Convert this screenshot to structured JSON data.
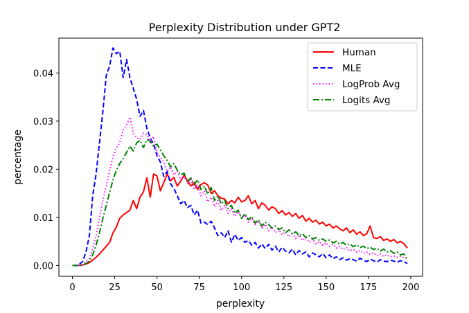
{
  "chart_data": {
    "type": "line",
    "title": "Perplexity Distribution under GPT2",
    "xlabel": "perplexity",
    "ylabel": "percentage",
    "xlim": [
      -8,
      207
    ],
    "ylim": [
      -0.00225,
      0.04725
    ],
    "x_ticks": [
      0,
      25,
      50,
      75,
      100,
      125,
      150,
      175,
      200
    ],
    "y_ticks": [
      0.0,
      0.01,
      0.02,
      0.03,
      0.04
    ],
    "x_tick_labels": [
      "0",
      "25",
      "50",
      "75",
      "100",
      "125",
      "150",
      "175",
      "200"
    ],
    "y_tick_labels": [
      "0.00",
      "0.01",
      "0.02",
      "0.03",
      "0.04"
    ],
    "grid": false,
    "legend_position": "top-right",
    "series": [
      {
        "name": "Human",
        "color": "#ff0000",
        "dash": "solid",
        "x": [
          0,
          2,
          4,
          6,
          8,
          10,
          12,
          14,
          16,
          18,
          20,
          22,
          24,
          26,
          28,
          30,
          32,
          34,
          36,
          38,
          40,
          42,
          44,
          46,
          48,
          50,
          52,
          54,
          56,
          58,
          60,
          62,
          64,
          66,
          68,
          70,
          72,
          74,
          76,
          78,
          80,
          82,
          84,
          86,
          88,
          90,
          92,
          94,
          96,
          98,
          100,
          102,
          104,
          106,
          108,
          110,
          112,
          114,
          116,
          118,
          120,
          122,
          124,
          126,
          128,
          130,
          132,
          134,
          136,
          138,
          140,
          142,
          144,
          146,
          148,
          150,
          152,
          154,
          156,
          158,
          160,
          162,
          164,
          166,
          168,
          170,
          172,
          174,
          176,
          178,
          180,
          182,
          184,
          186,
          188,
          190,
          192,
          194,
          196,
          198
        ],
        "y": [
          0.0,
          0.0,
          0.0,
          0.0001,
          0.0003,
          0.0006,
          0.0011,
          0.0017,
          0.0024,
          0.0032,
          0.004,
          0.0048,
          0.0068,
          0.008,
          0.0098,
          0.0105,
          0.011,
          0.0115,
          0.0135,
          0.0118,
          0.0142,
          0.0153,
          0.0182,
          0.0142,
          0.019,
          0.0186,
          0.0155,
          0.0172,
          0.019,
          0.0176,
          0.0183,
          0.0165,
          0.0175,
          0.0188,
          0.0176,
          0.0165,
          0.0172,
          0.0158,
          0.0168,
          0.0172,
          0.0167,
          0.015,
          0.0155,
          0.0145,
          0.014,
          0.0138,
          0.0128,
          0.0135,
          0.013,
          0.0142,
          0.0132,
          0.0135,
          0.0145,
          0.0128,
          0.0135,
          0.0118,
          0.013,
          0.0125,
          0.0115,
          0.0122,
          0.0118,
          0.0108,
          0.0114,
          0.0105,
          0.011,
          0.0102,
          0.0108,
          0.0098,
          0.0104,
          0.0092,
          0.0098,
          0.009,
          0.0094,
          0.0086,
          0.009,
          0.0082,
          0.0086,
          0.0078,
          0.0082,
          0.0076,
          0.0072,
          0.0078,
          0.0068,
          0.0074,
          0.0065,
          0.007,
          0.0062,
          0.0066,
          0.0082,
          0.0058,
          0.0056,
          0.006,
          0.0052,
          0.0055,
          0.005,
          0.0054,
          0.0047,
          0.005,
          0.0045,
          0.0036
        ]
      },
      {
        "name": "MLE",
        "color": "#0000ff",
        "dash": "dashed",
        "x": [
          0,
          2,
          4,
          6,
          8,
          10,
          12,
          14,
          16,
          18,
          20,
          22,
          24,
          26,
          28,
          30,
          32,
          34,
          36,
          38,
          40,
          42,
          44,
          46,
          48,
          50,
          52,
          54,
          56,
          58,
          60,
          62,
          64,
          66,
          68,
          70,
          72,
          74,
          76,
          78,
          80,
          82,
          84,
          86,
          88,
          90,
          92,
          94,
          96,
          98,
          100,
          102,
          104,
          106,
          108,
          110,
          112,
          114,
          116,
          118,
          120,
          122,
          124,
          126,
          128,
          130,
          132,
          134,
          136,
          138,
          140,
          142,
          144,
          146,
          148,
          150,
          152,
          154,
          156,
          158,
          160,
          162,
          164,
          166,
          168,
          170,
          172,
          174,
          176,
          178,
          180,
          182,
          184,
          186,
          188,
          190,
          192,
          194,
          196,
          198
        ],
        "y": [
          0.0,
          0.0,
          0.0002,
          0.0008,
          0.0028,
          0.0062,
          0.0145,
          0.019,
          0.0255,
          0.032,
          0.0395,
          0.0415,
          0.0452,
          0.044,
          0.0445,
          0.039,
          0.0428,
          0.039,
          0.0368,
          0.0345,
          0.031,
          0.0322,
          0.0285,
          0.0265,
          0.0252,
          0.0228,
          0.0215,
          0.0185,
          0.0195,
          0.017,
          0.016,
          0.0145,
          0.0128,
          0.0135,
          0.012,
          0.0125,
          0.0105,
          0.0115,
          0.0088,
          0.009,
          0.0085,
          0.0092,
          0.0078,
          0.0062,
          0.0068,
          0.0058,
          0.0072,
          0.0048,
          0.0065,
          0.0052,
          0.0058,
          0.0048,
          0.0052,
          0.0042,
          0.0048,
          0.0036,
          0.0045,
          0.0035,
          0.0044,
          0.0032,
          0.004,
          0.0028,
          0.0038,
          0.003,
          0.0026,
          0.0034,
          0.0022,
          0.0031,
          0.0024,
          0.0028,
          0.0018,
          0.0026,
          0.0022,
          0.0018,
          0.0025,
          0.0016,
          0.0022,
          0.0014,
          0.0018,
          0.0012,
          0.0016,
          0.0011,
          0.0014,
          0.0012,
          0.0009,
          0.0015,
          0.0011,
          0.0008,
          0.0013,
          0.001,
          0.0007,
          0.0012,
          0.0009,
          0.0008,
          0.0011,
          0.0009,
          0.0007,
          0.001,
          0.0008,
          0.0004
        ]
      },
      {
        "name": "LogProb Avg",
        "color": "#ff00ff",
        "dash": "dotted",
        "x": [
          0,
          2,
          4,
          6,
          8,
          10,
          12,
          14,
          16,
          18,
          20,
          22,
          24,
          26,
          28,
          30,
          32,
          34,
          36,
          38,
          40,
          42,
          44,
          46,
          48,
          50,
          52,
          54,
          56,
          58,
          60,
          62,
          64,
          66,
          68,
          70,
          72,
          74,
          76,
          78,
          80,
          82,
          84,
          86,
          88,
          90,
          92,
          94,
          96,
          98,
          100,
          102,
          104,
          106,
          108,
          110,
          112,
          114,
          116,
          118,
          120,
          122,
          124,
          126,
          128,
          130,
          132,
          134,
          136,
          138,
          140,
          142,
          144,
          146,
          148,
          150,
          152,
          154,
          156,
          158,
          160,
          162,
          164,
          166,
          168,
          170,
          172,
          174,
          176,
          178,
          180,
          182,
          184,
          186,
          188,
          190,
          192,
          194,
          196,
          198
        ],
        "y": [
          0.0,
          0.0,
          0.0,
          0.0002,
          0.0008,
          0.0015,
          0.0035,
          0.0062,
          0.0098,
          0.0135,
          0.0165,
          0.0198,
          0.0225,
          0.0245,
          0.0255,
          0.0282,
          0.0292,
          0.0308,
          0.0275,
          0.0265,
          0.0262,
          0.0275,
          0.0272,
          0.0255,
          0.0268,
          0.0235,
          0.0225,
          0.0215,
          0.0195,
          0.0205,
          0.0188,
          0.0195,
          0.0178,
          0.0185,
          0.017,
          0.018,
          0.0158,
          0.0168,
          0.0145,
          0.0155,
          0.0132,
          0.0142,
          0.0122,
          0.0135,
          0.0115,
          0.0125,
          0.0108,
          0.0118,
          0.0102,
          0.0112,
          0.0098,
          0.0105,
          0.009,
          0.0098,
          0.0085,
          0.0092,
          0.0078,
          0.0086,
          0.0072,
          0.008,
          0.0068,
          0.0075,
          0.0064,
          0.007,
          0.006,
          0.0066,
          0.0056,
          0.0063,
          0.0052,
          0.0058,
          0.0048,
          0.0055,
          0.0045,
          0.005,
          0.0042,
          0.0047,
          0.004,
          0.0044,
          0.0036,
          0.004,
          0.0033,
          0.0037,
          0.003,
          0.0034,
          0.0028,
          0.0031,
          0.0025,
          0.0028,
          0.0023,
          0.0026,
          0.0021,
          0.0024,
          0.0019,
          0.0022,
          0.0018,
          0.002,
          0.0017,
          0.0019,
          0.0016,
          0.0015
        ]
      },
      {
        "name": "Logits Avg",
        "color": "#008000",
        "dash": "dashdot",
        "x": [
          0,
          2,
          4,
          6,
          8,
          10,
          12,
          14,
          16,
          18,
          20,
          22,
          24,
          26,
          28,
          30,
          32,
          34,
          36,
          38,
          40,
          42,
          44,
          46,
          48,
          50,
          52,
          54,
          56,
          58,
          60,
          62,
          64,
          66,
          68,
          70,
          72,
          74,
          76,
          78,
          80,
          82,
          84,
          86,
          88,
          90,
          92,
          94,
          96,
          98,
          100,
          102,
          104,
          106,
          108,
          110,
          112,
          114,
          116,
          118,
          120,
          122,
          124,
          126,
          128,
          130,
          132,
          134,
          136,
          138,
          140,
          142,
          144,
          146,
          148,
          150,
          152,
          154,
          156,
          158,
          160,
          162,
          164,
          166,
          168,
          170,
          172,
          174,
          176,
          178,
          180,
          182,
          184,
          186,
          188,
          190,
          192,
          194,
          196,
          198
        ],
        "y": [
          0.0,
          0.0,
          0.0,
          0.0001,
          0.0004,
          0.0009,
          0.0022,
          0.0042,
          0.0068,
          0.0098,
          0.0125,
          0.0152,
          0.0178,
          0.0198,
          0.0212,
          0.0222,
          0.0235,
          0.0248,
          0.0238,
          0.0255,
          0.026,
          0.0245,
          0.0262,
          0.0258,
          0.0248,
          0.0252,
          0.024,
          0.0228,
          0.0218,
          0.0205,
          0.0212,
          0.0198,
          0.0188,
          0.0192,
          0.0175,
          0.0182,
          0.0168,
          0.0178,
          0.0158,
          0.0165,
          0.0148,
          0.0162,
          0.0135,
          0.0145,
          0.0128,
          0.0135,
          0.0118,
          0.0125,
          0.0108,
          0.0115,
          0.0098,
          0.0108,
          0.0095,
          0.0102,
          0.0088,
          0.0095,
          0.0082,
          0.009,
          0.0085,
          0.0078,
          0.0082,
          0.0075,
          0.0078,
          0.0068,
          0.0074,
          0.0065,
          0.007,
          0.0062,
          0.0066,
          0.0058,
          0.0062,
          0.0055,
          0.0058,
          0.0052,
          0.0055,
          0.005,
          0.0053,
          0.0047,
          0.005,
          0.0044,
          0.0048,
          0.0042,
          0.0045,
          0.0039,
          0.0043,
          0.0037,
          0.004,
          0.0035,
          0.0038,
          0.0033,
          0.0036,
          0.003,
          0.0034,
          0.0028,
          0.0031,
          0.0025,
          0.0028,
          0.0022,
          0.0024,
          0.0012
        ]
      }
    ]
  }
}
